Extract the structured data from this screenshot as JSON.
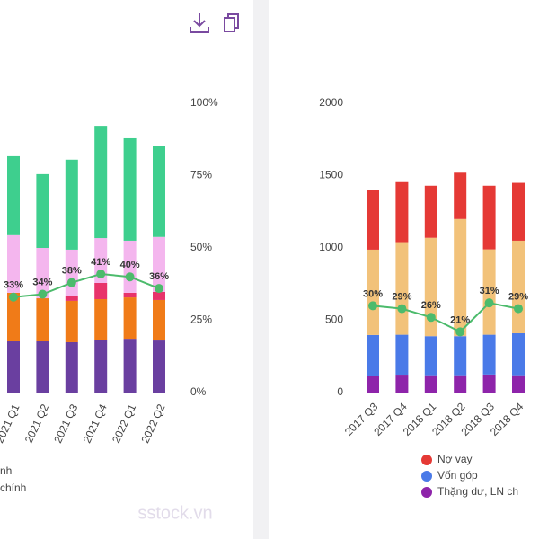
{
  "chart_data": [
    {
      "type": "bar",
      "categories": [
        "2021 Q1",
        "2021 Q2",
        "2021 Q3",
        "2021 Q4",
        "2022 Q1",
        "2022 Q2"
      ],
      "ylim": [
        0,
        100
      ],
      "y2lim": [
        0,
        100
      ],
      "y2ticks": [
        {
          "value": 0,
          "label": "0%"
        },
        {
          "value": 25,
          "label": "25%"
        },
        {
          "value": 50,
          "label": "50%"
        },
        {
          "value": 75,
          "label": "75%"
        },
        {
          "value": 100,
          "label": "100%"
        }
      ],
      "series": [
        {
          "color": "#6a3fa0",
          "values": [
            17.7,
            17.7,
            17.4,
            18.3,
            18.6,
            18
          ]
        },
        {
          "color": "#f07b18",
          "values": [
            16.8,
            14.9,
            14.3,
            14,
            14.3,
            14
          ]
        },
        {
          "color": "#e8336b",
          "values": [
            0,
            0,
            1.6,
            5.6,
            1.6,
            2.8
          ]
        },
        {
          "color": "#f4b6ee",
          "values": [
            19.9,
            17.4,
            16.1,
            15.5,
            18,
            19
          ]
        },
        {
          "color": "#3ecf8e",
          "values": [
            27.3,
            25.5,
            31.1,
            38.8,
            35.4,
            31.4
          ]
        },
        {
          "type": "line",
          "axis": "y2",
          "color": "#4cbb6c",
          "values": [
            33,
            34,
            38,
            41,
            40,
            36
          ],
          "value_labels": [
            "33%",
            "34%",
            "38%",
            "41%",
            "40%",
            "36%"
          ]
        }
      ],
      "legend_texts": [
        "nh",
        "chính"
      ]
    },
    {
      "type": "bar",
      "categories": [
        "2017 Q3",
        "2017 Q4",
        "2018 Q1",
        "2018 Q2",
        "2018 Q3",
        "2018 Q4"
      ],
      "ylim": [
        0,
        2000
      ],
      "yticks": [
        0,
        500,
        1000,
        1500,
        2000
      ],
      "y2lim": [
        0,
        100
      ],
      "series": [
        {
          "name": "Thặng dư, LN ch",
          "color": "#8e24aa",
          "values": [
            118,
            124,
            120,
            120,
            125,
            120
          ]
        },
        {
          "name": "Vốn góp",
          "color": "#4a7ae8",
          "values": [
            280,
            276,
            270,
            270,
            275,
            290
          ]
        },
        {
          "color": "#f2c27a",
          "values": [
            590,
            640,
            680,
            810,
            590,
            640
          ]
        },
        {
          "name": "Nợ vay",
          "color": "#e53935",
          "values": [
            410,
            415,
            360,
            320,
            440,
            400
          ]
        },
        {
          "type": "line",
          "axis": "y2",
          "color": "#4cbb6c",
          "values": [
            30,
            29,
            26,
            21,
            31,
            29
          ],
          "value_labels": [
            "30%",
            "29%",
            "26%",
            "21%",
            "31%",
            "29%"
          ]
        }
      ]
    }
  ],
  "watermark": "sstock.vn"
}
